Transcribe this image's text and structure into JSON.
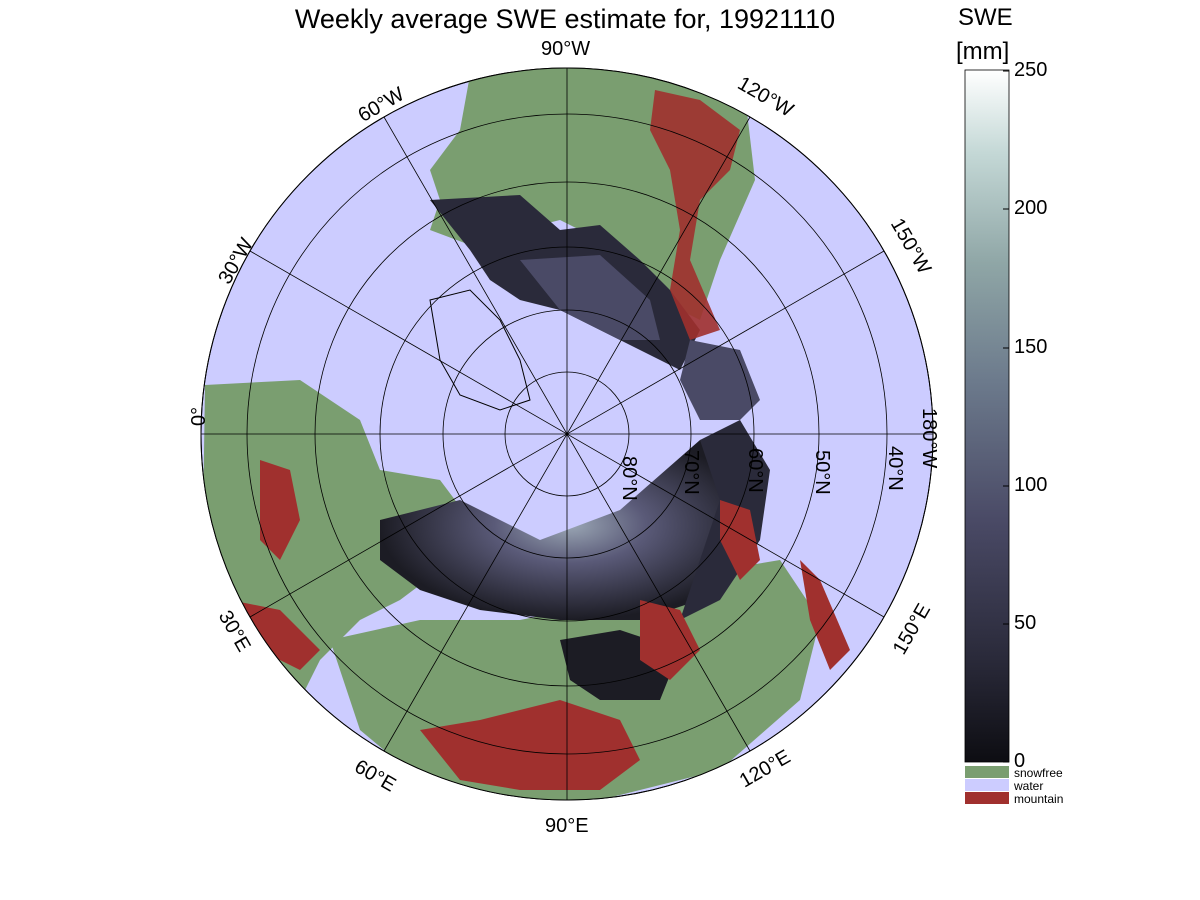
{
  "title": "Weekly average SWE estimate for, 19921110",
  "colorbar": {
    "title": "SWE",
    "unit": "[mm]",
    "ticks": [
      "0",
      "50",
      "100",
      "150",
      "200",
      "250"
    ],
    "categories": [
      {
        "label": "snowfree",
        "color": "#7a9e70"
      },
      {
        "label": "water",
        "color": "#ccccff"
      },
      {
        "label": "mountain",
        "color": "#a0302e"
      }
    ],
    "gradient": [
      "#0d0d12",
      "#2a2a3a",
      "#4a4a66",
      "#6c7a8c",
      "#8fa6a6",
      "#c4d8d6",
      "#ffffff"
    ]
  },
  "longitude_labels": {
    "lon_90w": "90°W",
    "lon_120w": "120°W",
    "lon_150w": "150°W",
    "lon_180w": "180°W",
    "lon_150e": "150°E",
    "lon_120e": "120°E",
    "lon_90e": "90°E",
    "lon_60e": "60°E",
    "lon_30e": "30°E",
    "lon_0": "0°",
    "lon_30w": "30°W",
    "lon_60w": "60°W"
  },
  "latitude_labels": {
    "lat_80n": "80°N",
    "lat_70n": "70°N",
    "lat_60n": "60°N",
    "lat_50n": "50°N",
    "lat_40n": "40°N"
  },
  "colors": {
    "water": "#ccccff",
    "snowfree": "#7a9e70",
    "mountain": "#a0302e",
    "snow_dark": "#1c1c24",
    "snow_mid": "#4a4a66"
  }
}
